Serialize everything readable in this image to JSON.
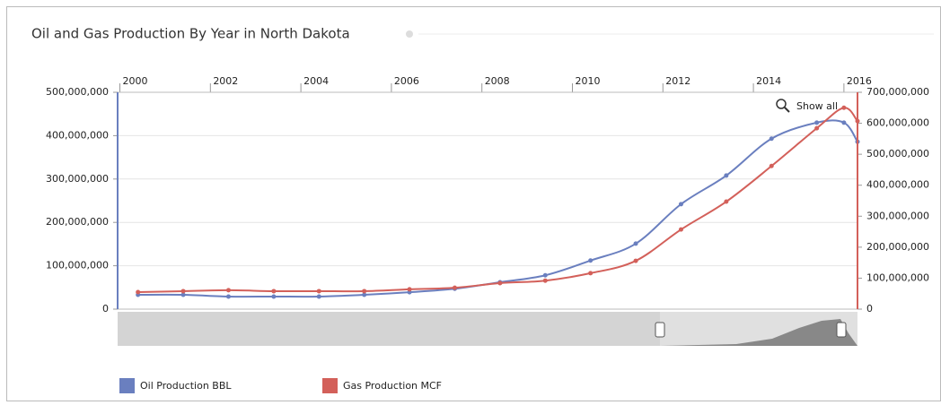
{
  "chart_data": {
    "type": "line",
    "title": "Oil and Gas Production By Year in North Dakota",
    "zoom_label": "Show all",
    "x": [
      2000.4,
      2001.4,
      2002.4,
      2003.4,
      2004.4,
      2005.4,
      2006.4,
      2007.4,
      2008.4,
      2009.4,
      2010.4,
      2011.4,
      2012.4,
      2013.4,
      2014.4,
      2015.4,
      2016.0,
      2016.3
    ],
    "series": [
      {
        "name": "Oil Production BBL",
        "color": "#6a7fbf",
        "axis": "y",
        "values": [
          33000000,
          33000000,
          29000000,
          29000000,
          29000000,
          33000000,
          39000000,
          47000000,
          62000000,
          78000000,
          112000000,
          151000000,
          242000000,
          308000000,
          393000000,
          430000000,
          430000000,
          386000000
        ]
      },
      {
        "name": "Gas Production MCF",
        "color": "#d3605a",
        "axis": "y2",
        "values": [
          55000000,
          58000000,
          61000000,
          58000000,
          58000000,
          58000000,
          64000000,
          69000000,
          84000000,
          92000000,
          116000000,
          156000000,
          257000000,
          347000000,
          462000000,
          584000000,
          650000000,
          607000000
        ]
      }
    ],
    "xlim": [
      1999.95,
      2016.3
    ],
    "xticks": [
      2000,
      2002,
      2004,
      2006,
      2008,
      2010,
      2012,
      2014,
      2016
    ],
    "ylim": [
      0,
      500000000
    ],
    "yticks": [
      0,
      {
        "value": 100000000,
        "label": "100,000,000"
      },
      {
        "value": 200000000,
        "label": "200,000,000"
      },
      {
        "value": 300000000,
        "label": "300,000,000"
      },
      {
        "value": 400000000,
        "label": "400,000,000"
      },
      {
        "value": 500000000,
        "label": "500,000,000"
      }
    ],
    "y2lim": [
      0,
      700000000
    ],
    "y2ticks": [
      0,
      {
        "value": 100000000,
        "label": "100,000,000"
      },
      {
        "value": 200000000,
        "label": "200,000,000"
      },
      {
        "value": 300000000,
        "label": "300,000,000"
      },
      {
        "value": 400000000,
        "label": "400,000,000"
      },
      {
        "value": 500000000,
        "label": "500,000,000"
      },
      {
        "value": 600000000,
        "label": "600,000,000"
      },
      {
        "value": 700000000,
        "label": "700,000,000"
      }
    ],
    "grid": true
  }
}
